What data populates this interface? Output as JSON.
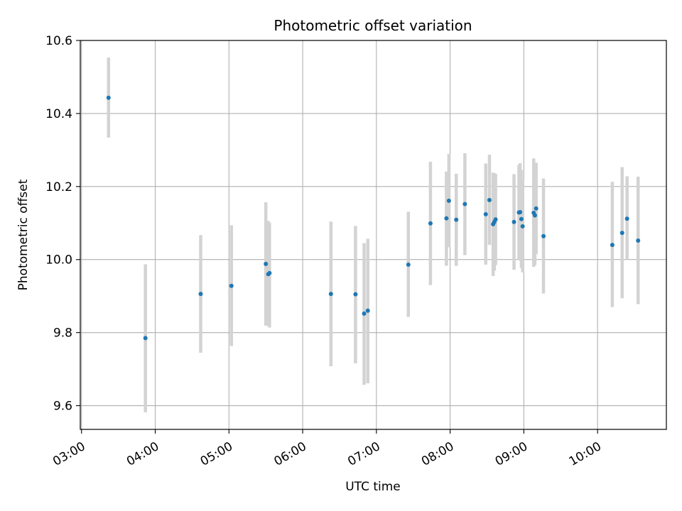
{
  "chart_data": {
    "type": "scatter",
    "title": "Photometric offset variation",
    "xlabel": "UTC time",
    "ylabel": "Photometric offset",
    "x_tick_labels": [
      "03:00",
      "04:00",
      "05:00",
      "06:00",
      "07:00",
      "08:00",
      "09:00",
      "10:00"
    ],
    "y_tick_labels": [
      "9.6",
      "9.8",
      "10.0",
      "10.2",
      "10.4",
      "10.6"
    ],
    "xlim": [
      "02:59",
      "10:56"
    ],
    "ylim": [
      9.535,
      10.6
    ],
    "grid": true,
    "colors": {
      "points": "#1f77b4",
      "errorbars": "#d3d3d3",
      "grid": "#b0b0b0"
    },
    "points": [
      {
        "x": "03:22",
        "y": 10.443,
        "ylo": 10.334,
        "yhi": 10.553
      },
      {
        "x": "03:52",
        "y": 9.785,
        "ylo": 9.582,
        "yhi": 9.987
      },
      {
        "x": "04:37",
        "y": 9.906,
        "ylo": 9.745,
        "yhi": 10.067
      },
      {
        "x": "05:02",
        "y": 9.928,
        "ylo": 9.763,
        "yhi": 10.094
      },
      {
        "x": "05:30",
        "y": 9.988,
        "ylo": 9.819,
        "yhi": 10.157
      },
      {
        "x": "05:32",
        "y": 9.96,
        "ylo": 9.819,
        "yhi": 10.106
      },
      {
        "x": "05:33",
        "y": 9.963,
        "ylo": 9.814,
        "yhi": 10.101
      },
      {
        "x": "06:23",
        "y": 9.906,
        "ylo": 9.708,
        "yhi": 10.104
      },
      {
        "x": "06:43",
        "y": 9.905,
        "ylo": 9.716,
        "yhi": 10.092
      },
      {
        "x": "06:50",
        "y": 9.852,
        "ylo": 9.657,
        "yhi": 10.045
      },
      {
        "x": "06:53",
        "y": 9.86,
        "ylo": 9.661,
        "yhi": 10.057
      },
      {
        "x": "07:26",
        "y": 9.986,
        "ylo": 9.843,
        "yhi": 10.131
      },
      {
        "x": "07:44",
        "y": 10.099,
        "ylo": 9.93,
        "yhi": 10.268
      },
      {
        "x": "07:57",
        "y": 10.113,
        "ylo": 9.983,
        "yhi": 10.241
      },
      {
        "x": "07:59",
        "y": 10.161,
        "ylo": 10.034,
        "yhi": 10.289
      },
      {
        "x": "08:05",
        "y": 10.109,
        "ylo": 9.983,
        "yhi": 10.235
      },
      {
        "x": "08:12",
        "y": 10.152,
        "ylo": 10.012,
        "yhi": 10.291
      },
      {
        "x": "08:29",
        "y": 10.124,
        "ylo": 9.986,
        "yhi": 10.263
      },
      {
        "x": "08:32",
        "y": 10.163,
        "ylo": 10.04,
        "yhi": 10.287
      },
      {
        "x": "08:35",
        "y": 10.097,
        "ylo": 9.955,
        "yhi": 10.238
      },
      {
        "x": "08:36",
        "y": 10.103,
        "ylo": 9.969,
        "yhi": 10.236
      },
      {
        "x": "08:37",
        "y": 10.11,
        "ylo": 9.985,
        "yhi": 10.235
      },
      {
        "x": "08:52",
        "y": 10.103,
        "ylo": 9.972,
        "yhi": 10.234
      },
      {
        "x": "08:56",
        "y": 10.129,
        "ylo": 10.0,
        "yhi": 10.259
      },
      {
        "x": "08:57",
        "y": 10.13,
        "ylo": 9.997,
        "yhi": 10.264
      },
      {
        "x": "08:58",
        "y": 10.111,
        "ylo": 9.977,
        "yhi": 10.245
      },
      {
        "x": "08:59",
        "y": 10.091,
        "ylo": 9.965,
        "yhi": 10.22
      },
      {
        "x": "09:08",
        "y": 10.128,
        "ylo": 9.98,
        "yhi": 10.277
      },
      {
        "x": "09:09",
        "y": 10.121,
        "ylo": 9.985,
        "yhi": 10.257
      },
      {
        "x": "09:10",
        "y": 10.14,
        "ylo": 10.015,
        "yhi": 10.265
      },
      {
        "x": "09:16",
        "y": 10.064,
        "ylo": 9.907,
        "yhi": 10.222
      },
      {
        "x": "10:12",
        "y": 10.04,
        "ylo": 9.87,
        "yhi": 10.213
      },
      {
        "x": "10:20",
        "y": 10.073,
        "ylo": 9.894,
        "yhi": 10.253
      },
      {
        "x": "10:24",
        "y": 10.112,
        "ylo": 10.0,
        "yhi": 10.228
      },
      {
        "x": "10:33",
        "y": 10.052,
        "ylo": 9.878,
        "yhi": 10.227
      }
    ]
  }
}
